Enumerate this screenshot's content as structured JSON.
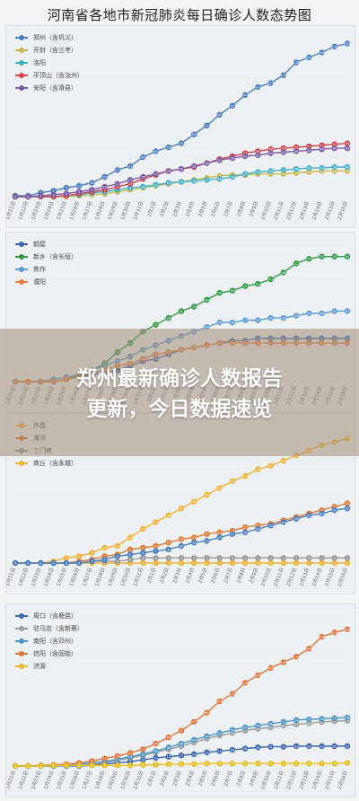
{
  "page": {
    "title": "河南省各地市新冠肺炎每日确诊人数态势图",
    "headline_line1": "郑州最新确诊人数报告",
    "headline_line2": "更新，今日数据速览"
  },
  "dates": [
    "1月21日",
    "1月22日",
    "1月23日",
    "1月24日",
    "1月25日",
    "1月26日",
    "1月27日",
    "1月28日",
    "1月29日",
    "1月30日",
    "1月31日",
    "2月1日",
    "2月2日",
    "2月3日",
    "2月4日",
    "2月5日",
    "2月6日",
    "2月7日",
    "2月8日",
    "2月9日",
    "2月10日",
    "2月11日",
    "2月12日",
    "2月13日",
    "2月14日",
    "2月15日",
    "2月16日"
  ],
  "chart_data": [
    {
      "type": "line",
      "series": [
        {
          "name": "郑州（含巩义）",
          "color": "#4a7fc1",
          "values": [
            1,
            1,
            4,
            6,
            9,
            11,
            14,
            20,
            27,
            31,
            40,
            46,
            50,
            54,
            63,
            72,
            83,
            92,
            103,
            111,
            115,
            123,
            136,
            141,
            146,
            152,
            155
          ]
        },
        {
          "name": "开封（含兰考）",
          "color": "#c8b84a",
          "values": [
            0,
            0,
            0,
            0,
            0,
            1,
            2,
            3,
            5,
            7,
            9,
            11,
            13,
            15,
            17,
            19,
            21,
            22,
            22,
            23,
            23,
            23,
            24,
            25,
            26,
            26,
            26
          ]
        },
        {
          "name": "洛阳",
          "color": "#45b0c9",
          "values": [
            0,
            0,
            0,
            0,
            1,
            2,
            4,
            5,
            7,
            9,
            10,
            12,
            14,
            15,
            16,
            17,
            18,
            20,
            23,
            25,
            26,
            27,
            28,
            29,
            29,
            30,
            30
          ]
        },
        {
          "name": "平顶山（含汝州）",
          "color": "#d0444a",
          "values": [
            0,
            0,
            0,
            0,
            1,
            3,
            5,
            7,
            10,
            13,
            18,
            22,
            26,
            28,
            30,
            34,
            38,
            41,
            44,
            46,
            48,
            49,
            50,
            51,
            52,
            53,
            54
          ]
        },
        {
          "name": "安阳（含滑县）",
          "color": "#7b5aa6",
          "values": [
            0,
            0,
            1,
            2,
            3,
            5,
            7,
            10,
            13,
            17,
            20,
            23,
            26,
            28,
            31,
            34,
            37,
            39,
            41,
            42,
            44,
            45,
            46,
            47,
            48,
            49,
            49
          ]
        }
      ]
    },
    {
      "type": "line",
      "series": [
        {
          "name": "鹤壁",
          "color": "#3a66b0",
          "values": [
            0,
            0,
            0,
            0,
            1,
            2,
            3,
            4,
            5,
            7,
            9,
            10,
            12,
            14,
            15,
            16,
            17,
            18,
            18,
            19,
            19,
            19,
            19,
            19,
            19,
            19,
            19
          ]
        },
        {
          "name": "新乡（含长垣）",
          "color": "#2f9a44",
          "values": [
            0,
            0,
            0,
            0,
            1,
            3,
            5,
            8,
            13,
            17,
            22,
            25,
            28,
            31,
            33,
            36,
            39,
            40,
            42,
            43,
            45,
            48,
            52,
            54,
            55,
            55,
            55
          ]
        },
        {
          "name": "焦作",
          "color": "#5b9bd5",
          "values": [
            0,
            0,
            0,
            1,
            2,
            3,
            5,
            7,
            9,
            11,
            14,
            16,
            18,
            20,
            22,
            24,
            26,
            26,
            27,
            27,
            28,
            28,
            29,
            30,
            30,
            31,
            31
          ]
        },
        {
          "name": "濮阳",
          "color": "#e67e3b",
          "values": [
            0,
            0,
            0,
            0,
            1,
            2,
            4,
            5,
            7,
            8,
            10,
            12,
            13,
            14,
            15,
            16,
            17,
            17,
            17,
            17,
            17,
            17,
            17,
            17,
            17,
            17,
            17
          ]
        }
      ]
    },
    {
      "type": "line",
      "series": [
        {
          "name": "许昌",
          "color": "#f2b233",
          "values": [
            0,
            0,
            0,
            0,
            0,
            0,
            0,
            0,
            0,
            0,
            0,
            0,
            0,
            0,
            0,
            0,
            0,
            0,
            0,
            0,
            0,
            0,
            0,
            0,
            0,
            0,
            0
          ]
        },
        {
          "name": "漯河",
          "color": "#e07a32",
          "values": [
            0,
            0,
            0,
            0,
            0,
            1,
            2,
            4,
            5,
            8,
            9,
            10,
            12,
            14,
            15,
            17,
            18,
            19,
            21,
            22,
            23,
            25,
            27,
            29,
            31,
            33,
            35
          ]
        },
        {
          "name": "三门峡",
          "color": "#999999",
          "values": [
            0,
            0,
            0,
            0,
            0,
            0,
            1,
            1,
            1,
            2,
            3,
            3,
            3,
            3,
            3,
            3,
            3,
            3,
            3,
            3,
            3,
            3,
            3,
            3,
            3,
            3,
            3
          ]
        },
        {
          "name": "商丘（含永城）",
          "color": "#f2b233",
          "values": [
            0,
            0,
            0,
            1,
            3,
            4,
            6,
            9,
            10,
            15,
            20,
            24,
            28,
            32,
            36,
            40,
            44,
            48,
            51,
            55,
            57,
            60,
            63,
            66,
            69,
            71,
            73
          ]
        },
        {
          "name": "",
          "color": "#4a7fc1",
          "values": [
            0,
            0,
            0,
            0,
            0,
            0,
            1,
            2,
            4,
            5,
            6,
            7,
            8,
            10,
            12,
            13,
            15,
            17,
            18,
            20,
            22,
            24,
            26,
            28,
            29,
            31,
            32
          ]
        }
      ]
    },
    {
      "type": "line",
      "series": [
        {
          "name": "周口（含鹿邑）",
          "color": "#3a66b0",
          "values": [
            0,
            0,
            0,
            0,
            0,
            0,
            1,
            3,
            5,
            7,
            10,
            13,
            15,
            17,
            19,
            22,
            24,
            26,
            28,
            30,
            31,
            31,
            32,
            32,
            32,
            32,
            32
          ]
        },
        {
          "name": "驻马店（含新蔡）",
          "color": "#9a9a9a",
          "values": [
            0,
            0,
            0,
            0,
            1,
            2,
            3,
            5,
            9,
            13,
            17,
            22,
            27,
            32,
            38,
            44,
            49,
            53,
            57,
            60,
            62,
            65,
            67,
            69,
            71,
            72,
            73
          ]
        },
        {
          "name": "南阳（含邓州）",
          "color": "#4a95c8",
          "values": [
            0,
            0,
            0,
            0,
            1,
            3,
            5,
            7,
            11,
            15,
            19,
            24,
            30,
            36,
            42,
            48,
            53,
            58,
            62,
            65,
            68,
            71,
            74,
            75,
            76,
            77,
            78
          ]
        },
        {
          "name": "信阳（含固始）",
          "color": "#e0743a",
          "values": [
            0,
            0,
            1,
            2,
            3,
            5,
            8,
            12,
            16,
            21,
            27,
            36,
            46,
            57,
            71,
            86,
            104,
            116,
            134,
            146,
            158,
            167,
            176,
            189,
            208,
            215,
            220
          ]
        },
        {
          "name": "济源",
          "color": "#e8c020",
          "values": [
            0,
            0,
            0,
            1,
            1,
            1,
            1,
            1,
            1,
            1,
            2,
            2,
            3,
            3,
            3,
            4,
            4,
            4,
            4,
            4,
            4,
            4,
            4,
            4,
            4,
            4,
            5
          ]
        }
      ]
    }
  ]
}
